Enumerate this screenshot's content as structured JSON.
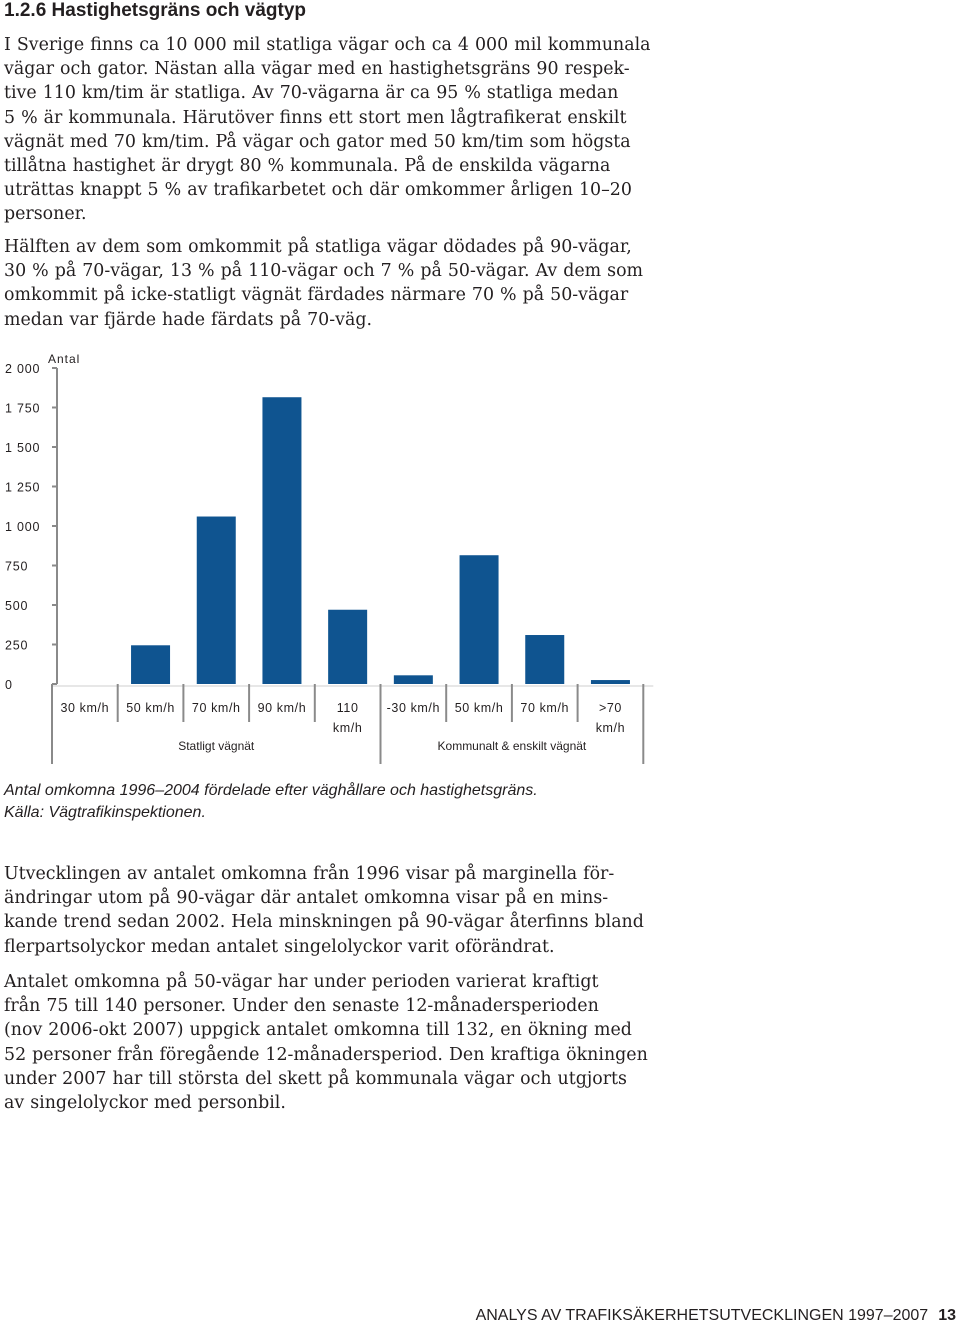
{
  "heading": "1.2.6 Hastighetsgräns och vägtyp",
  "paragraph1": [
    "I Sverige finns ca 10 000 mil statliga vägar och ca 4 000 mil kommunala",
    "vägar och gator. Nästan alla vägar med en hastighetsgräns 90 respek-",
    "tive 110 km/tim är statliga. Av 70-vägarna är ca 95 % statliga medan",
    "5 % är kommunala. Härutöver finns ett stort men lågtrafikerat enskilt",
    "vägnät med 70 km/tim. På vägar och gator med 50 km/tim som högsta",
    "tillåtna hastighet är drygt 80 % kommunala. På de enskilda vägarna",
    "uträttas knappt 5 % av trafikarbetet och där omkommer årligen 10–20",
    "personer."
  ],
  "paragraph2": [
    "Hälften av dem som omkommit på statliga vägar dödades på 90-vägar,",
    "30 % på 70-vägar, 13 % på 110-vägar och 7 % på 50-vägar. Av dem som",
    "omkommit på icke-statligt vägnät färdades närmare 70 % på 50-vägar",
    "medan var fjärde hade färdats på 70-väg."
  ],
  "chart_data": {
    "type": "bar",
    "ylabel": "Antal",
    "ylim": [
      0,
      2000
    ],
    "y_ticks": [
      "2 000",
      "1 750",
      "1 500",
      "1 250",
      "1 000",
      "750",
      "500",
      "250",
      "0"
    ],
    "y_tick_values": [
      2000,
      1750,
      1500,
      1250,
      1000,
      750,
      500,
      250,
      0
    ],
    "categories": [
      [
        "30 km/h"
      ],
      [
        "50 km/h"
      ],
      [
        "70 km/h"
      ],
      [
        "90 km/h"
      ],
      [
        "110",
        "km/h"
      ],
      [
        "-30 km/h"
      ],
      [
        "50 km/h"
      ],
      [
        "70 km/h"
      ],
      [
        ">70",
        "km/h"
      ]
    ],
    "values": [
      0,
      245,
      1060,
      1815,
      470,
      55,
      815,
      310,
      25
    ],
    "groups": [
      "Statligt vägnät",
      "Kommunalt & enskilt vägnät"
    ],
    "bar_color": "#0f5490",
    "grid": false
  },
  "caption": [
    "Antal omkomna 1996–2004 fördelade efter väghållare och hastighetsgräns.",
    "Källa: Vägtrafikinspektionen."
  ],
  "paragraph3": [
    "Utvecklingen av antalet omkomna från 1996 visar på marginella för-",
    "ändringar utom på 90-vägar där antalet omkomna visar på en mins-",
    "kande trend sedan 2002. Hela minskningen på 90-vägar återfinns bland",
    "flerpartsolyckor medan antalet singelolyckor varit oförändrat."
  ],
  "paragraph4": [
    "Antalet omkomna på 50-vägar har under perioden varierat kraftigt",
    "från 75 till 140 personer. Under den senaste 12-månadersperioden",
    "(nov 2006-okt 2007) uppgick antalet omkomna till 132, en ökning med",
    "52 personer från föregående 12-månadersperiod. Den kraftiga ökningen",
    "under 2007 har till största del skett på kommunala vägar och utgjorts",
    "av singelolyckor med personbil."
  ],
  "footer": {
    "title": "ANALYS AV TRAFIKSÄKERHETSUTVECKLINGEN 1997–2007",
    "page": "13"
  }
}
